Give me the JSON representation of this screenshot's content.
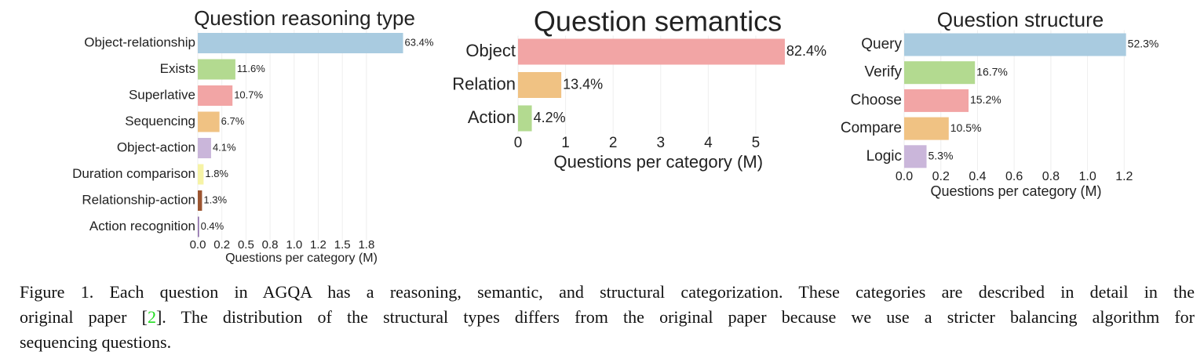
{
  "chart_data": [
    {
      "type": "barh",
      "title": "Question reasoning type",
      "x_label": "Questions per category (M)",
      "categories": [
        "Object-relationship",
        "Exists",
        "Superlative",
        "Sequencing",
        "Object-action",
        "Duration comparison",
        "Relationship-action",
        "Action recognition"
      ],
      "values": [
        2.13,
        0.39,
        0.36,
        0.225,
        0.138,
        0.06,
        0.044,
        0.013
      ],
      "percent_labels": [
        "63.4%",
        "11.6%",
        "10.7%",
        "6.7%",
        "4.1%",
        "1.8%",
        "1.3%",
        "0.4%"
      ],
      "colors": [
        "#a9cbe0",
        "#b3da90",
        "#f2a5a5",
        "#f0c283",
        "#cab6da",
        "#f6f3a6",
        "#9c5530",
        "#8a6aa8"
      ],
      "xlim": [
        0,
        2.15
      ],
      "xticks": [
        {
          "value": 0,
          "label": "0.0"
        },
        {
          "value": 0.25,
          "label": "0.2"
        },
        {
          "value": 0.5,
          "label": "0.5"
        },
        {
          "value": 0.75,
          "label": "0.8"
        },
        {
          "value": 1,
          "label": "1.0"
        },
        {
          "value": 1.25,
          "label": "1.2"
        },
        {
          "value": 1.5,
          "label": "1.5"
        },
        {
          "value": 1.75,
          "label": "1.8"
        }
      ],
      "grid": true
    },
    {
      "type": "barh",
      "title": "Question semantics",
      "x_label": "Questions per category (M)",
      "categories": [
        "Object",
        "Relation",
        "Action"
      ],
      "values": [
        5.61,
        0.91,
        0.29
      ],
      "percent_labels": [
        "82.4%",
        "13.4%",
        "4.2%"
      ],
      "colors": [
        "#f2a5a5",
        "#f0c283",
        "#b3da90"
      ],
      "xlim": [
        0,
        5.9
      ],
      "xticks": [
        0,
        1,
        2,
        3,
        4,
        5
      ],
      "grid": true
    },
    {
      "type": "barh",
      "title": "Question structure",
      "x_label": "Questions per category (M)",
      "categories": [
        "Query",
        "Verify",
        "Choose",
        "Compare",
        "Logic"
      ],
      "values": [
        1.21,
        0.386,
        0.351,
        0.243,
        0.122
      ],
      "percent_labels": [
        "52.3%",
        "16.7%",
        "15.2%",
        "10.5%",
        "5.3%"
      ],
      "colors": [
        "#a9cbe0",
        "#b3da90",
        "#f2a5a5",
        "#f0c283",
        "#cab6da"
      ],
      "xlim": [
        0,
        1.22
      ],
      "xticks": [
        {
          "value": 0,
          "label": "0.0"
        },
        {
          "value": 0.2,
          "label": "0.2"
        },
        {
          "value": 0.4,
          "label": "0.4"
        },
        {
          "value": 0.6,
          "label": "0.6"
        },
        {
          "value": 0.8,
          "label": "0.8"
        },
        {
          "value": 1,
          "label": "1.0"
        },
        {
          "value": 1.2,
          "label": "1.2"
        }
      ],
      "grid": true
    }
  ],
  "caption": {
    "line1": "Figure 1. Each question in AGQA has a reasoning, semantic, and structural categorization. These categories are described in detail in the",
    "line2_before": "original paper [",
    "ref": "2",
    "line2_after": "]. The distribution of the structural types differs from the original paper because we use a stricter balancing algorithm for",
    "line3": "sequencing questions."
  }
}
